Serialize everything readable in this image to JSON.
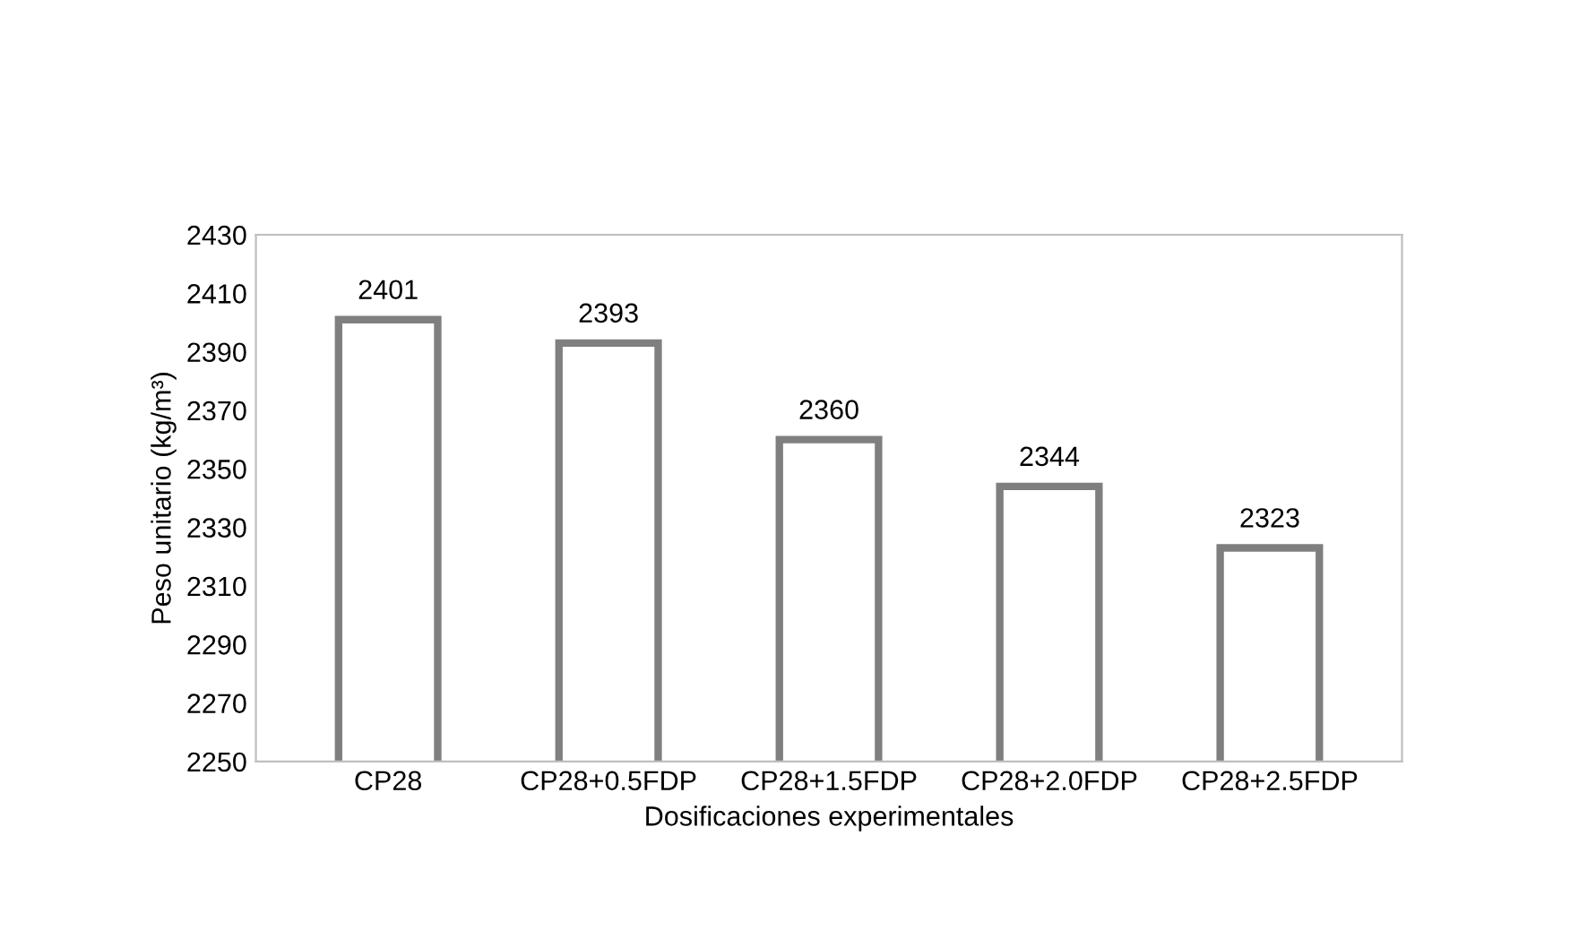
{
  "chart_data": {
    "type": "bar",
    "xlabel": "Dosificaciones experimentales",
    "ylabel": "Peso unitario (kg/m³)",
    "categories": [
      "CP28",
      "CP28+0.5FDP",
      "CP28+1.5FDP",
      "CP28+2.0FDP",
      "CP28+2.5FDP"
    ],
    "values": [
      2401,
      2393,
      2360,
      2344,
      2323
    ],
    "color": "#7f7f7f",
    "ylim": [
      2250,
      2430
    ],
    "yticks": [
      2250,
      2270,
      2290,
      2310,
      2330,
      2350,
      2370,
      2390,
      2410,
      2430
    ],
    "data_labels": true,
    "grid": false,
    "legend": false
  }
}
